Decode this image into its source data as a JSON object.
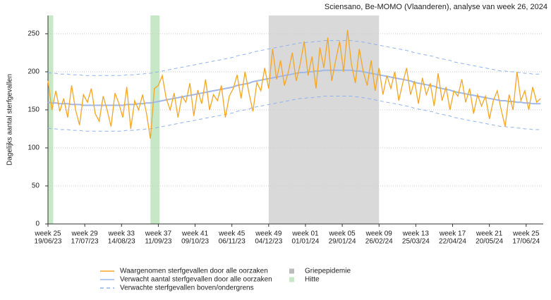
{
  "chart_data": {
    "type": "line",
    "title": "Sciensano, Be-MOMO (Vlaanderen), analyse van week 26, 2024",
    "y_label": "Dagelijks aantal sterfgevallen",
    "x": [
      "19/06/23",
      "22/06/23",
      "25/06/23",
      "28/06/23",
      "01/07/23",
      "04/07/23",
      "07/07/23",
      "10/07/23",
      "13/07/23",
      "16/07/23",
      "19/07/23",
      "22/07/23",
      "25/07/23",
      "28/07/23",
      "31/07/23",
      "03/08/23",
      "06/08/23",
      "09/08/23",
      "12/08/23",
      "15/08/23",
      "18/08/23",
      "21/08/23",
      "24/08/23",
      "27/08/23",
      "30/08/23",
      "02/09/23",
      "05/09/23",
      "08/09/23",
      "11/09/23",
      "14/09/23",
      "17/09/23",
      "20/09/23",
      "23/09/23",
      "26/09/23",
      "29/09/23",
      "02/10/23",
      "05/10/23",
      "08/10/23",
      "11/10/23",
      "14/10/23",
      "17/10/23",
      "20/10/23",
      "23/10/23",
      "26/10/23",
      "29/10/23",
      "01/11/23",
      "04/11/23",
      "07/11/23",
      "10/11/23",
      "13/11/23",
      "16/11/23",
      "19/11/23",
      "22/11/23",
      "25/11/23",
      "28/11/23",
      "01/12/23",
      "04/12/23",
      "07/12/23",
      "10/12/23",
      "13/12/23",
      "16/12/23",
      "19/12/23",
      "22/12/23",
      "25/12/23",
      "28/12/23",
      "31/12/23",
      "03/01/24",
      "06/01/24",
      "09/01/24",
      "12/01/24",
      "15/01/24",
      "18/01/24",
      "21/01/24",
      "24/01/24",
      "27/01/24",
      "30/01/24",
      "02/02/24",
      "05/02/24",
      "08/02/24",
      "11/02/24",
      "14/02/24",
      "17/02/24",
      "20/02/24",
      "23/02/24",
      "26/02/24",
      "29/02/24",
      "03/03/24",
      "06/03/24",
      "09/03/24",
      "12/03/24",
      "15/03/24",
      "18/03/24",
      "21/03/24",
      "24/03/24",
      "27/03/24",
      "30/03/24",
      "02/04/24",
      "05/04/24",
      "08/04/24",
      "11/04/24",
      "14/04/24",
      "17/04/24",
      "20/04/24",
      "23/04/24",
      "26/04/24",
      "29/04/24",
      "02/05/24",
      "05/05/24",
      "08/05/24",
      "11/05/24",
      "14/05/24",
      "17/05/24",
      "20/05/24",
      "23/05/24",
      "26/05/24",
      "29/05/24",
      "01/06/24",
      "04/06/24",
      "07/06/24",
      "10/06/24",
      "13/06/24",
      "16/06/24",
      "19/06/24",
      "22/06/24",
      "25/06/24",
      "28/06/24"
    ],
    "series": [
      {
        "name": "Waargenomen sterfgevallen door alle oorzaken",
        "color": "#f5a623",
        "values": [
          188,
          150,
          175,
          148,
          165,
          140,
          182,
          150,
          130,
          170,
          160,
          178,
          145,
          135,
          168,
          150,
          128,
          172,
          158,
          140,
          180,
          125,
          162,
          150,
          170,
          145,
          112,
          178,
          182,
          195,
          165,
          150,
          172,
          140,
          168,
          160,
          185,
          142,
          176,
          158,
          190,
          150,
          170,
          162,
          182,
          140,
          168,
          178,
          196,
          165,
          200,
          172,
          148,
          186,
          175,
          205,
          178,
          230,
          190,
          215,
          182,
          200,
          225,
          188,
          210,
          240,
          195,
          220,
          178,
          232,
          205,
          245,
          188,
          215,
          240,
          200,
          255,
          210,
          185,
          230,
          200,
          182,
          215,
          175,
          205,
          170,
          195,
          178,
          200,
          162,
          185,
          205,
          170,
          188,
          158,
          192,
          170,
          185,
          155,
          198,
          162,
          180,
          150,
          175,
          168,
          190,
          160,
          178,
          145,
          170,
          155,
          168,
          138,
          162,
          175,
          150,
          128,
          170,
          150,
          200,
          162,
          175,
          150,
          180,
          160,
          165
        ]
      },
      {
        "name": "Verwacht aantal sterfgevallen door alle oorzaken",
        "color": "#9fb8e8",
        "values": [
          160,
          159,
          159,
          158,
          158,
          158,
          157,
          157,
          157,
          156,
          156,
          156,
          156,
          156,
          156,
          156,
          156,
          156,
          156,
          156,
          157,
          157,
          157,
          158,
          158,
          159,
          159,
          160,
          161,
          162,
          163,
          164,
          165,
          166,
          167,
          168,
          169,
          170,
          171,
          172,
          173,
          174,
          175,
          176,
          177,
          178,
          179,
          180,
          182,
          183,
          184,
          185,
          187,
          188,
          189,
          190,
          191,
          192,
          193,
          194,
          195,
          196,
          197,
          198,
          199,
          199,
          200,
          200,
          201,
          201,
          202,
          202,
          202,
          202,
          202,
          202,
          202,
          202,
          201,
          201,
          200,
          199,
          198,
          197,
          196,
          195,
          194,
          193,
          192,
          191,
          190,
          189,
          188,
          186,
          185,
          184,
          183,
          182,
          181,
          179,
          178,
          177,
          176,
          174,
          173,
          172,
          171,
          170,
          169,
          168,
          167,
          166,
          165,
          164,
          163,
          162,
          162,
          161,
          161,
          160,
          160,
          159,
          159,
          158,
          158,
          158
        ]
      },
      {
        "name": "Verwachte sterfgevallen boven/ondergrens",
        "color": "#8fb3f0",
        "style": "dashed",
        "upper": [
          199,
          198,
          198,
          197,
          197,
          197,
          196,
          196,
          196,
          195,
          195,
          195,
          195,
          195,
          195,
          195,
          195,
          195,
          195,
          195,
          196,
          196,
          196,
          197,
          197,
          198,
          198,
          199,
          200,
          201,
          202,
          203,
          204,
          205,
          206,
          207,
          208,
          209,
          210,
          211,
          212,
          213,
          214,
          215,
          216,
          217,
          218,
          219,
          221,
          222,
          223,
          224,
          226,
          227,
          228,
          229,
          230,
          231,
          232,
          233,
          234,
          235,
          236,
          237,
          238,
          238,
          239,
          239,
          240,
          240,
          241,
          241,
          241,
          241,
          241,
          241,
          241,
          241,
          240,
          240,
          239,
          238,
          237,
          236,
          235,
          234,
          233,
          232,
          231,
          230,
          229,
          228,
          227,
          225,
          224,
          223,
          222,
          221,
          220,
          218,
          217,
          216,
          215,
          213,
          212,
          211,
          210,
          209,
          208,
          207,
          206,
          205,
          204,
          203,
          202,
          201,
          201,
          200,
          200,
          199,
          199,
          198,
          198,
          197,
          197,
          197
        ],
        "lower": [
          126,
          125,
          125,
          124,
          124,
          124,
          123,
          123,
          123,
          122,
          122,
          122,
          122,
          122,
          122,
          122,
          122,
          122,
          122,
          122,
          123,
          123,
          123,
          124,
          124,
          125,
          125,
          126,
          127,
          128,
          129,
          130,
          131,
          132,
          133,
          134,
          135,
          136,
          137,
          138,
          139,
          140,
          141,
          142,
          143,
          144,
          145,
          146,
          148,
          149,
          150,
          151,
          153,
          154,
          155,
          156,
          157,
          158,
          159,
          160,
          161,
          162,
          163,
          164,
          165,
          165,
          166,
          166,
          167,
          167,
          168,
          168,
          168,
          168,
          168,
          168,
          168,
          168,
          167,
          167,
          166,
          165,
          164,
          163,
          162,
          161,
          160,
          159,
          158,
          157,
          156,
          155,
          154,
          152,
          151,
          150,
          149,
          148,
          147,
          145,
          144,
          143,
          142,
          140,
          139,
          138,
          137,
          136,
          135,
          134,
          133,
          132,
          131,
          130,
          129,
          128,
          128,
          127,
          127,
          126,
          126,
          125,
          125,
          124,
          124,
          124
        ]
      }
    ],
    "bands": [
      {
        "name": "Griepepidemie",
        "color": "#d9d9d9",
        "ranges": [
          [
            "04/12/23",
            "26/02/24"
          ]
        ]
      },
      {
        "name": "Hitte",
        "color": "#c6e8c6",
        "ranges": [
          [
            "19/06/23",
            "23/06/23"
          ],
          [
            "05/09/23",
            "12/09/23"
          ]
        ]
      }
    ],
    "xlim": [
      "19/06/23",
      "30/06/24"
    ],
    "xticks": [
      {
        "value": "19/06/23",
        "label": "week 25"
      },
      {
        "value": "17/07/23",
        "label": "week 29"
      },
      {
        "value": "14/08/23",
        "label": "week 33"
      },
      {
        "value": "11/09/23",
        "label": "week 37"
      },
      {
        "value": "09/10/23",
        "label": "week 41"
      },
      {
        "value": "06/11/23",
        "label": "week 45"
      },
      {
        "value": "04/12/23",
        "label": "week 49"
      },
      {
        "value": "01/01/24",
        "label": "week 01"
      },
      {
        "value": "29/01/24",
        "label": "week 05"
      },
      {
        "value": "26/02/24",
        "label": "week 09"
      },
      {
        "value": "25/03/24",
        "label": "week 13"
      },
      {
        "value": "22/04/24",
        "label": "week 17"
      },
      {
        "value": "20/05/24",
        "label": "week 21"
      },
      {
        "value": "17/06/24",
        "label": "week 25"
      }
    ],
    "ylim": [
      0,
      274
    ],
    "yticks": [
      0,
      50,
      100,
      150,
      200,
      250
    ],
    "grid": true
  }
}
